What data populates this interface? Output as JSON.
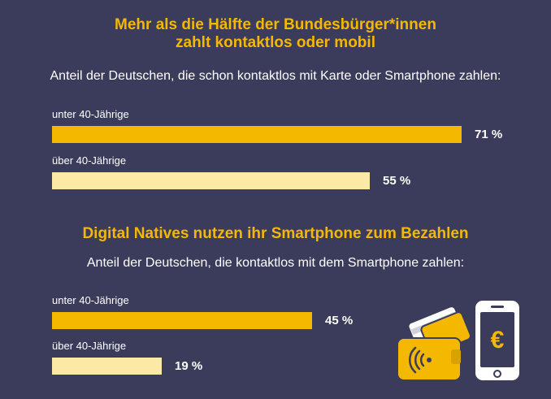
{
  "colors": {
    "background": "#3b3c5c",
    "accent": "#f5b800",
    "bar_primary": "#f5b800",
    "bar_secondary": "#fde9a6",
    "text": "#ffffff"
  },
  "chart_data": [
    {
      "type": "bar",
      "orientation": "horizontal",
      "title": "Mehr als die Hälfte der Bundesbürger*innen zahlt kontaktlos oder mobil",
      "title_lines": [
        "Mehr als die Hälfte der Bundesbürger*innen",
        "zahlt kontaktlos oder mobil"
      ],
      "subtitle": "Anteil der Deutschen, die schon kontaktlos mit Karte oder Smartphone zahlen:",
      "categories": [
        "unter 40-Jährige",
        "über 40-Jährige"
      ],
      "values": [
        71,
        55
      ],
      "value_labels": [
        "71 %",
        "55 %"
      ],
      "unit": "%",
      "xlim": [
        0,
        100
      ]
    },
    {
      "type": "bar",
      "orientation": "horizontal",
      "title": "Digital Natives nutzen ihr Smartphone zum Bezahlen",
      "title_lines": [
        "Digital Natives nutzen ihr Smartphone zum Bezahlen"
      ],
      "subtitle": "Anteil der Deutschen, die kontaktlos mit dem Smartphone zahlen:",
      "categories": [
        "unter 40-Jährige",
        "über 40-Jährige"
      ],
      "values": [
        45,
        19
      ],
      "value_labels": [
        "45 %",
        "19 %"
      ],
      "unit": "%",
      "xlim": [
        0,
        100
      ]
    }
  ],
  "illustration": {
    "icons": [
      "contactless-wallet-icon",
      "card-icon",
      "smartphone-euro-icon"
    ],
    "currency_symbol": "€"
  }
}
